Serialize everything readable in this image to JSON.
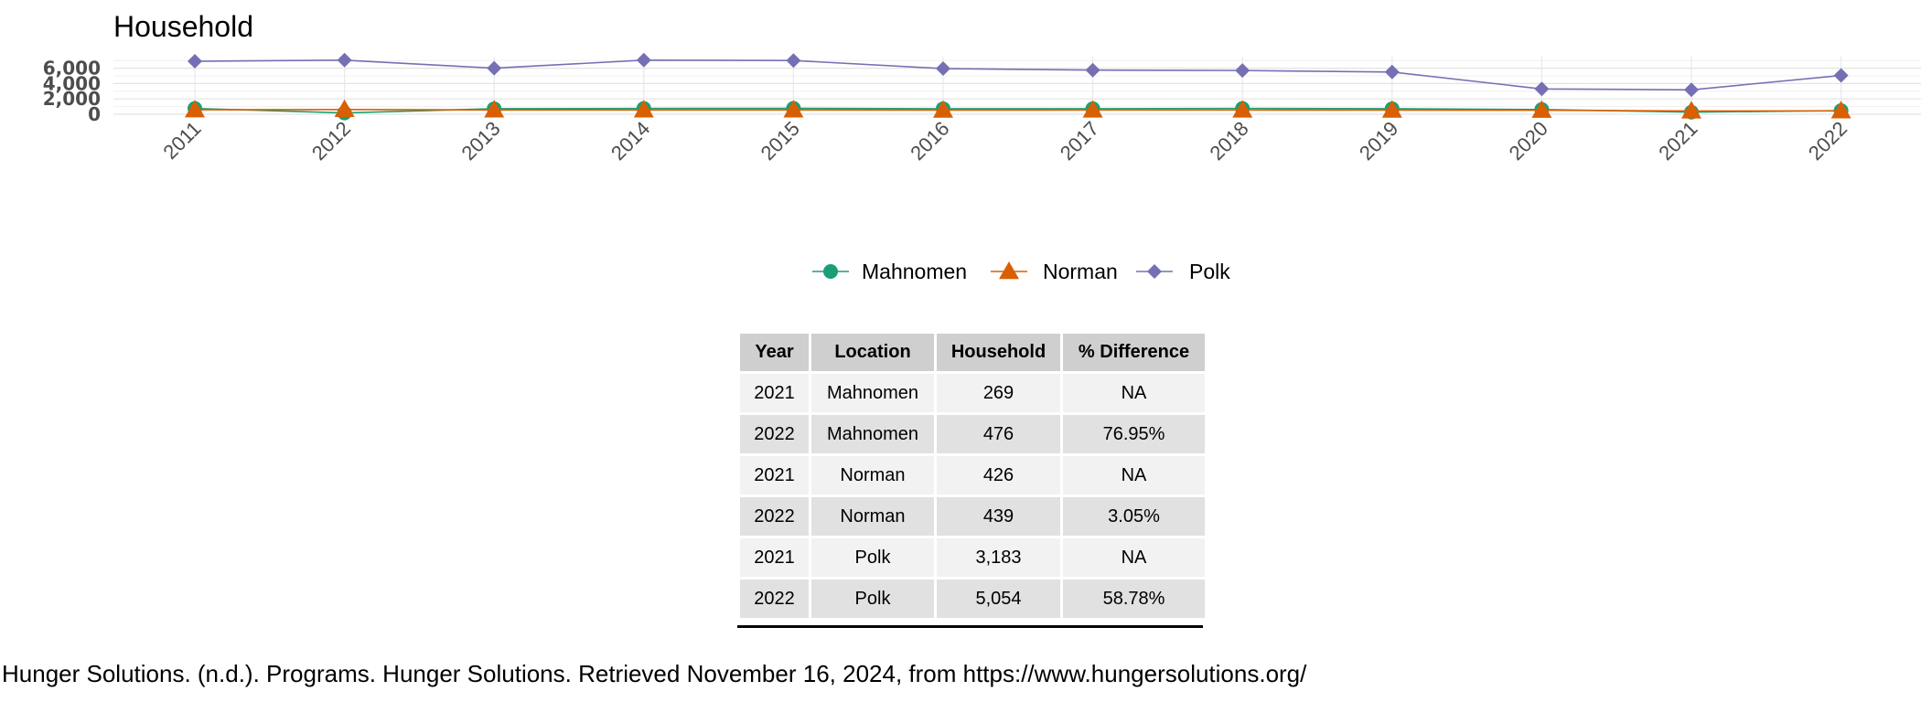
{
  "chart_data": {
    "type": "line",
    "title": "Household",
    "xlabel": "",
    "ylabel": "",
    "x": [
      "2011",
      "2012",
      "2013",
      "2014",
      "2015",
      "2016",
      "2017",
      "2018",
      "2019",
      "2020",
      "2021",
      "2022"
    ],
    "yticks": [
      0,
      2000,
      4000,
      6000
    ],
    "ytick_labels": [
      "0",
      "2,000",
      "4,000",
      "6,000"
    ],
    "ylim": [
      0,
      7500
    ],
    "grid": true,
    "legend_position": "bottom",
    "series": [
      {
        "name": "Mahnomen",
        "color": "#1b9e77",
        "marker": "circle",
        "values": [
          760,
          170,
          720,
          760,
          770,
          720,
          730,
          760,
          720,
          620,
          269,
          476
        ]
      },
      {
        "name": "Norman",
        "color": "#d95f02",
        "marker": "triangle",
        "values": [
          580,
          620,
          560,
          560,
          560,
          540,
          550,
          550,
          540,
          520,
          426,
          439
        ]
      },
      {
        "name": "Polk",
        "color": "#7570b3",
        "marker": "diamond",
        "values": [
          6900,
          7050,
          6000,
          7050,
          7000,
          5950,
          5750,
          5700,
          5500,
          3300,
          3183,
          5054
        ]
      }
    ]
  },
  "table": {
    "headers": [
      "Year",
      "Location",
      "Household",
      "% Difference"
    ],
    "rows": [
      [
        "2021",
        "Mahnomen",
        "269",
        "NA"
      ],
      [
        "2022",
        "Mahnomen",
        "476",
        "76.95%"
      ],
      [
        "2021",
        "Norman",
        "426",
        "NA"
      ],
      [
        "2022",
        "Norman",
        "439",
        "3.05%"
      ],
      [
        "2021",
        "Polk",
        "3,183",
        "NA"
      ],
      [
        "2022",
        "Polk",
        "5,054",
        "58.78%"
      ]
    ]
  },
  "caption": "Hunger Solutions. (n.d.). Programs. Hunger Solutions. Retrieved November 16, 2024, from https://www.hungersolutions.org/"
}
